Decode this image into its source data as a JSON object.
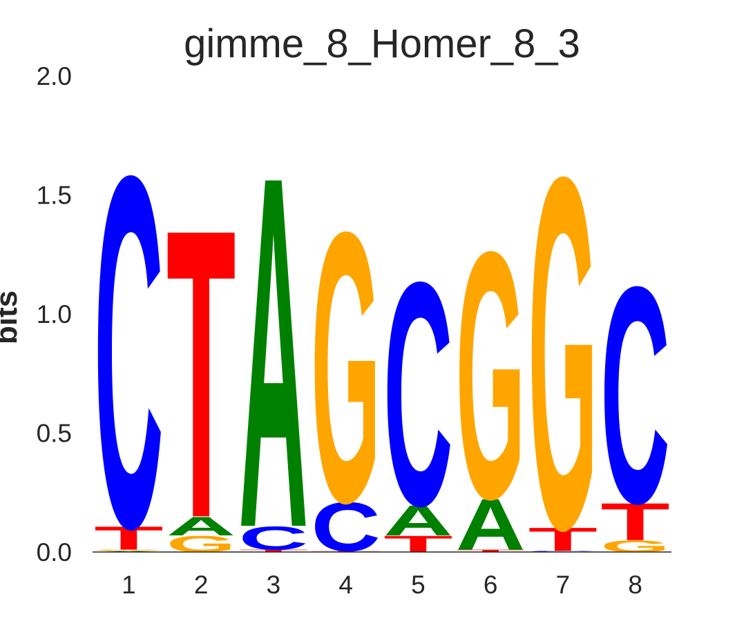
{
  "chart_data": {
    "type": "sequence-logo",
    "title": "gimme_8_Homer_8_3",
    "ylabel": "bits",
    "ylim": [
      0,
      2.0
    ],
    "yticks": [
      "0.0",
      "0.5",
      "1.0",
      "1.5",
      "2.0"
    ],
    "x": [
      "1",
      "2",
      "3",
      "4",
      "5",
      "6",
      "7",
      "8"
    ],
    "grid": false,
    "colors": {
      "A": "#008000",
      "C": "#0000ff",
      "G": "#ffa500",
      "T": "#ff0000"
    },
    "positions": [
      {
        "pos": "1",
        "letters": [
          {
            "base": "A",
            "bits": 0.005
          },
          {
            "base": "G",
            "bits": 0.005
          },
          {
            "base": "T",
            "bits": 0.1
          },
          {
            "base": "C",
            "bits": 1.51
          }
        ]
      },
      {
        "pos": "2",
        "letters": [
          {
            "base": "G",
            "bits": 0.07
          },
          {
            "base": "A",
            "bits": 0.08
          },
          {
            "base": "T",
            "bits": 1.24
          }
        ]
      },
      {
        "pos": "3",
        "letters": [
          {
            "base": "T",
            "bits": 0.01
          },
          {
            "base": "C",
            "bits": 0.1
          },
          {
            "base": "A",
            "bits": 1.51
          }
        ]
      },
      {
        "pos": "4",
        "letters": [
          {
            "base": "T",
            "bits": 0.005
          },
          {
            "base": "C",
            "bits": 0.21
          },
          {
            "base": "G",
            "bits": 1.16
          }
        ]
      },
      {
        "pos": "5",
        "letters": [
          {
            "base": "T",
            "bits": 0.07
          },
          {
            "base": "A",
            "bits": 0.13
          },
          {
            "base": "C",
            "bits": 0.96
          }
        ]
      },
      {
        "pos": "6",
        "letters": [
          {
            "base": "T",
            "bits": 0.01
          },
          {
            "base": "A",
            "bits": 0.22
          },
          {
            "base": "G",
            "bits": 1.06
          }
        ]
      },
      {
        "pos": "7",
        "letters": [
          {
            "base": "C",
            "bits": 0.005
          },
          {
            "base": "T",
            "bits": 0.1
          },
          {
            "base": "G",
            "bits": 1.51
          }
        ]
      },
      {
        "pos": "8",
        "letters": [
          {
            "base": "G",
            "bits": 0.05
          },
          {
            "base": "T",
            "bits": 0.16
          },
          {
            "base": "C",
            "bits": 0.93
          }
        ]
      }
    ]
  }
}
